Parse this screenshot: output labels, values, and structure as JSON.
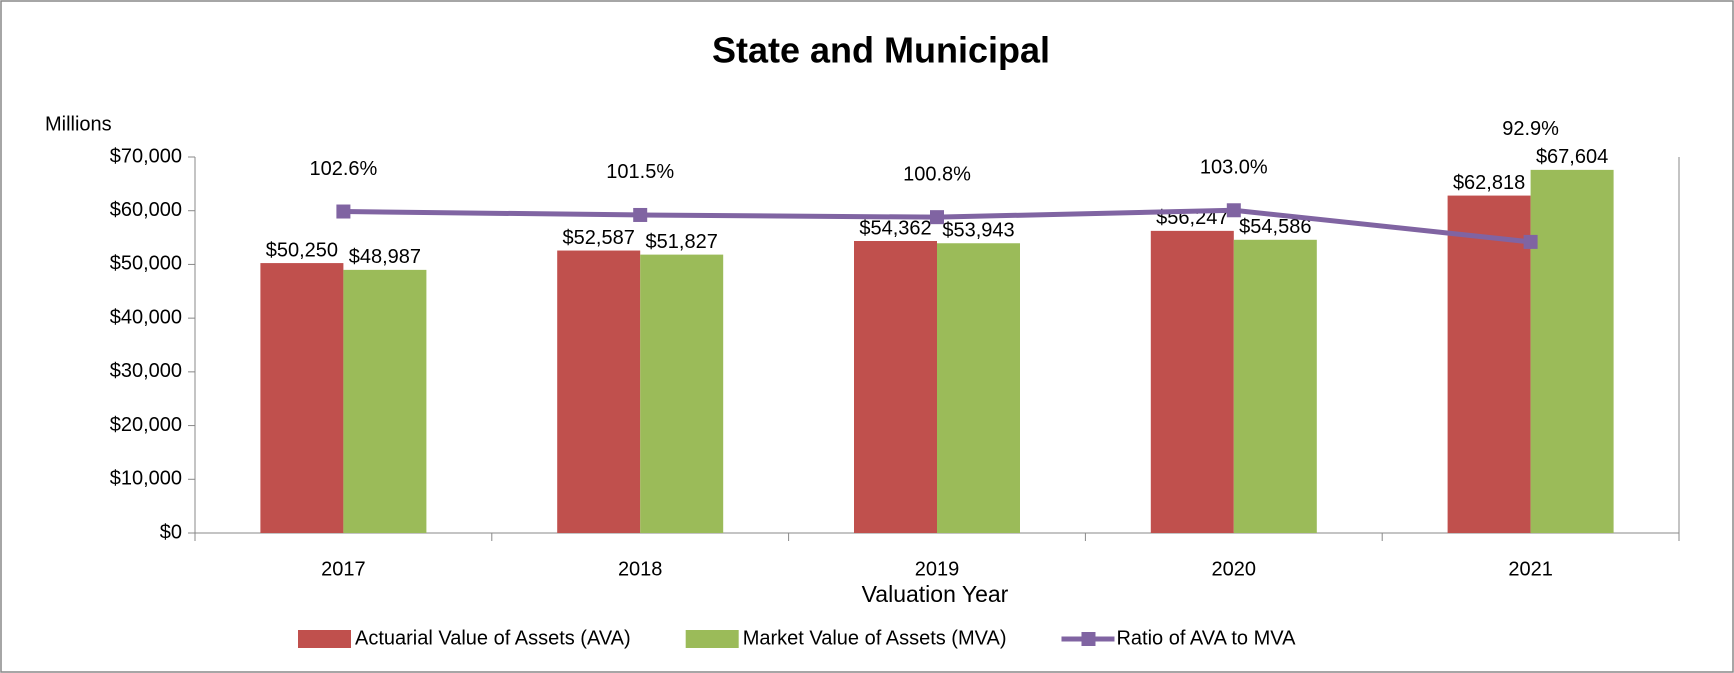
{
  "chart_data": {
    "type": "bar",
    "title": "State and Municipal",
    "y_unit_label": "Millions",
    "x_label": "Valuation Year",
    "categories": [
      "2017",
      "2018",
      "2019",
      "2020",
      "2021"
    ],
    "series": [
      {
        "name": "Actuarial Value of Assets (AVA)",
        "color": "#c0504d",
        "values": [
          50250,
          52587,
          54362,
          56247,
          62818
        ],
        "value_labels": [
          "$50,250",
          "$52,587",
          "$54,362",
          "$56,247",
          "$62,818"
        ]
      },
      {
        "name": "Market Value of Assets (MVA)",
        "color": "#9bbb59",
        "values": [
          48987,
          51827,
          53943,
          54586,
          67604
        ],
        "value_labels": [
          "$48,987",
          "$51,827",
          "$53,943",
          "$54,586",
          "$67,604"
        ]
      },
      {
        "name": "Ratio of AVA to MVA",
        "type": "line",
        "axis": "y2",
        "color": "#8064a2",
        "values": [
          102.6,
          101.5,
          100.8,
          103.0,
          92.9
        ],
        "value_labels": [
          "102.6%",
          "101.5%",
          "100.8%",
          "103.0%",
          "92.9%"
        ]
      }
    ],
    "ylim": [
      0,
      70000
    ],
    "yticks": [
      {
        "value": 0,
        "label": "$0"
      },
      {
        "value": 10000,
        "label": "$10,000"
      },
      {
        "value": 20000,
        "label": "$20,000"
      },
      {
        "value": 30000,
        "label": "$30,000"
      },
      {
        "value": 40000,
        "label": "$40,000"
      },
      {
        "value": 50000,
        "label": "$50,000"
      },
      {
        "value": 60000,
        "label": "$60,000"
      },
      {
        "value": 70000,
        "label": "$70,000"
      }
    ],
    "y2lim": [
      0,
      120
    ],
    "legend": "bottom"
  }
}
